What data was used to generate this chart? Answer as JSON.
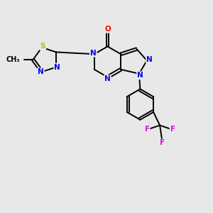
{
  "background_color": "#e8e8e8",
  "bond_color": "#000000",
  "N_color": "#0000ee",
  "O_color": "#ff0000",
  "S_color": "#bbbb00",
  "F_color": "#ee00ee",
  "lw": 1.4,
  "fs": 7.5,
  "xlim": [
    0,
    10
  ],
  "ylim": [
    0,
    10
  ]
}
